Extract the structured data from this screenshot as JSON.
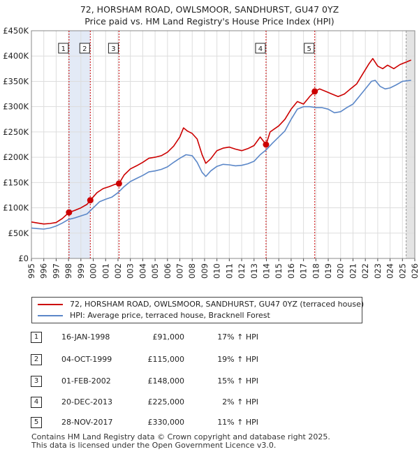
{
  "title_line1": "72, HORSHAM ROAD, OWLSMOOR, SANDHURST, GU47 0YZ",
  "title_line2": "Price paid vs. HM Land Registry's House Price Index (HPI)",
  "chart_data": {
    "type": "line",
    "ylim": [
      0,
      450000
    ],
    "xlim": [
      1995,
      2026
    ],
    "y_ticks": [
      {
        "value": 0,
        "label": "£0"
      },
      {
        "value": 50000,
        "label": "£50K"
      },
      {
        "value": 100000,
        "label": "£100K"
      },
      {
        "value": 150000,
        "label": "£150K"
      },
      {
        "value": 200000,
        "label": "£200K"
      },
      {
        "value": 250000,
        "label": "£250K"
      },
      {
        "value": 300000,
        "label": "£300K"
      },
      {
        "value": 350000,
        "label": "£350K"
      },
      {
        "value": 400000,
        "label": "£400K"
      },
      {
        "value": 450000,
        "label": "£450K"
      }
    ],
    "x_ticks": [
      "1995",
      "1996",
      "1997",
      "1998",
      "1999",
      "2000",
      "2001",
      "2002",
      "2003",
      "2004",
      "2005",
      "2006",
      "2007",
      "2008",
      "2009",
      "2010",
      "2011",
      "2012",
      "2013",
      "2014",
      "2015",
      "2016",
      "2017",
      "2018",
      "2019",
      "2020",
      "2021",
      "2022",
      "2023",
      "2024",
      "2025",
      "2026"
    ],
    "grid": true,
    "shaded_region": {
      "from": 2025.3,
      "to": 2026
    },
    "series": [
      {
        "name": "72, HORSHAM ROAD, OWLSMOOR, SANDHURST, GU47 0YZ (terraced house)",
        "color": "#cc0000",
        "points": [
          [
            1995.0,
            72000
          ],
          [
            1995.5,
            70000
          ],
          [
            1996.0,
            68000
          ],
          [
            1996.5,
            69000
          ],
          [
            1997.0,
            71000
          ],
          [
            1997.5,
            79000
          ],
          [
            1998.04,
            91000
          ],
          [
            1998.5,
            95000
          ],
          [
            1999.0,
            100000
          ],
          [
            1999.5,
            107000
          ],
          [
            1999.76,
            115000
          ],
          [
            2000.3,
            130000
          ],
          [
            2000.8,
            138000
          ],
          [
            2001.3,
            142000
          ],
          [
            2001.7,
            146000
          ],
          [
            2002.08,
            148000
          ],
          [
            2002.5,
            165000
          ],
          [
            2003.0,
            177000
          ],
          [
            2003.5,
            183000
          ],
          [
            2004.0,
            190000
          ],
          [
            2004.5,
            198000
          ],
          [
            2005.0,
            200000
          ],
          [
            2005.5,
            203000
          ],
          [
            2006.0,
            210000
          ],
          [
            2006.5,
            222000
          ],
          [
            2007.0,
            240000
          ],
          [
            2007.3,
            258000
          ],
          [
            2007.6,
            252000
          ],
          [
            2008.0,
            247000
          ],
          [
            2008.4,
            236000
          ],
          [
            2008.8,
            205000
          ],
          [
            2009.1,
            188000
          ],
          [
            2009.5,
            197000
          ],
          [
            2010.0,
            213000
          ],
          [
            2010.5,
            218000
          ],
          [
            2011.0,
            220000
          ],
          [
            2011.5,
            216000
          ],
          [
            2012.0,
            213000
          ],
          [
            2012.5,
            217000
          ],
          [
            2013.0,
            223000
          ],
          [
            2013.5,
            240000
          ],
          [
            2013.97,
            225000
          ],
          [
            2014.3,
            250000
          ],
          [
            2015.0,
            262000
          ],
          [
            2015.5,
            275000
          ],
          [
            2016.0,
            295000
          ],
          [
            2016.5,
            310000
          ],
          [
            2017.0,
            305000
          ],
          [
            2017.5,
            320000
          ],
          [
            2017.91,
            330000
          ],
          [
            2018.3,
            335000
          ],
          [
            2018.8,
            330000
          ],
          [
            2019.3,
            325000
          ],
          [
            2019.8,
            320000
          ],
          [
            2020.3,
            325000
          ],
          [
            2020.8,
            335000
          ],
          [
            2021.3,
            345000
          ],
          [
            2021.8,
            365000
          ],
          [
            2022.3,
            385000
          ],
          [
            2022.6,
            395000
          ],
          [
            2023.0,
            380000
          ],
          [
            2023.4,
            375000
          ],
          [
            2023.8,
            382000
          ],
          [
            2024.3,
            375000
          ],
          [
            2024.8,
            383000
          ],
          [
            2025.3,
            388000
          ],
          [
            2025.7,
            392000
          ]
        ]
      },
      {
        "name": "HPI: Average price, terraced house, Bracknell Forest",
        "color": "#5b87c8",
        "points": [
          [
            1995.0,
            60000
          ],
          [
            1995.5,
            59000
          ],
          [
            1996.0,
            58000
          ],
          [
            1996.5,
            60000
          ],
          [
            1997.0,
            64000
          ],
          [
            1997.5,
            70000
          ],
          [
            1998.0,
            77000
          ],
          [
            1998.5,
            80000
          ],
          [
            1999.0,
            84000
          ],
          [
            1999.5,
            88000
          ],
          [
            2000.0,
            100000
          ],
          [
            2000.5,
            112000
          ],
          [
            2001.0,
            117000
          ],
          [
            2001.5,
            121000
          ],
          [
            2002.0,
            130000
          ],
          [
            2002.5,
            142000
          ],
          [
            2003.0,
            152000
          ],
          [
            2003.5,
            158000
          ],
          [
            2004.0,
            164000
          ],
          [
            2004.5,
            171000
          ],
          [
            2005.0,
            173000
          ],
          [
            2005.5,
            176000
          ],
          [
            2006.0,
            181000
          ],
          [
            2006.5,
            190000
          ],
          [
            2007.0,
            198000
          ],
          [
            2007.5,
            205000
          ],
          [
            2008.0,
            203000
          ],
          [
            2008.4,
            190000
          ],
          [
            2008.8,
            170000
          ],
          [
            2009.1,
            162000
          ],
          [
            2009.5,
            173000
          ],
          [
            2010.0,
            182000
          ],
          [
            2010.5,
            186000
          ],
          [
            2011.0,
            185000
          ],
          [
            2011.5,
            183000
          ],
          [
            2012.0,
            184000
          ],
          [
            2012.5,
            187000
          ],
          [
            2013.0,
            192000
          ],
          [
            2013.5,
            205000
          ],
          [
            2014.0,
            215000
          ],
          [
            2014.5,
            228000
          ],
          [
            2015.0,
            240000
          ],
          [
            2015.5,
            252000
          ],
          [
            2016.0,
            275000
          ],
          [
            2016.5,
            295000
          ],
          [
            2017.0,
            300000
          ],
          [
            2017.5,
            300000
          ],
          [
            2018.0,
            298000
          ],
          [
            2018.5,
            298000
          ],
          [
            2019.0,
            295000
          ],
          [
            2019.5,
            288000
          ],
          [
            2020.0,
            290000
          ],
          [
            2020.5,
            298000
          ],
          [
            2021.0,
            305000
          ],
          [
            2021.5,
            320000
          ],
          [
            2022.0,
            335000
          ],
          [
            2022.5,
            350000
          ],
          [
            2022.8,
            352000
          ],
          [
            2023.2,
            340000
          ],
          [
            2023.6,
            335000
          ],
          [
            2024.0,
            337000
          ],
          [
            2024.5,
            343000
          ],
          [
            2025.0,
            350000
          ],
          [
            2025.7,
            352000
          ]
        ]
      }
    ],
    "events": [
      {
        "id": "1",
        "x": 1998.04,
        "price": 91000
      },
      {
        "id": "2",
        "x": 1999.76,
        "price": 115000
      },
      {
        "id": "3",
        "x": 2002.08,
        "price": 148000
      },
      {
        "id": "4",
        "x": 2013.97,
        "price": 225000
      },
      {
        "id": "5",
        "x": 2017.91,
        "price": 330000
      }
    ]
  },
  "legend": {
    "red_label": "72, HORSHAM ROAD, OWLSMOOR, SANDHURST, GU47 0YZ (terraced house)",
    "blue_label": "HPI: Average price, terraced house, Bracknell Forest"
  },
  "transactions": [
    {
      "num": "1",
      "date": "16-JAN-1998",
      "price": "£91,000",
      "hpi": "17% ↑ HPI"
    },
    {
      "num": "2",
      "date": "04-OCT-1999",
      "price": "£115,000",
      "hpi": "19% ↑ HPI"
    },
    {
      "num": "3",
      "date": "01-FEB-2002",
      "price": "£148,000",
      "hpi": "15% ↑ HPI"
    },
    {
      "num": "4",
      "date": "20-DEC-2013",
      "price": "£225,000",
      "hpi": "2% ↑ HPI"
    },
    {
      "num": "5",
      "date": "28-NOV-2017",
      "price": "£330,000",
      "hpi": "11% ↑ HPI"
    }
  ],
  "footer_line1": "Contains HM Land Registry data © Crown copyright and database right 2025.",
  "footer_line2": "This data is licensed under the Open Government Licence v3.0."
}
